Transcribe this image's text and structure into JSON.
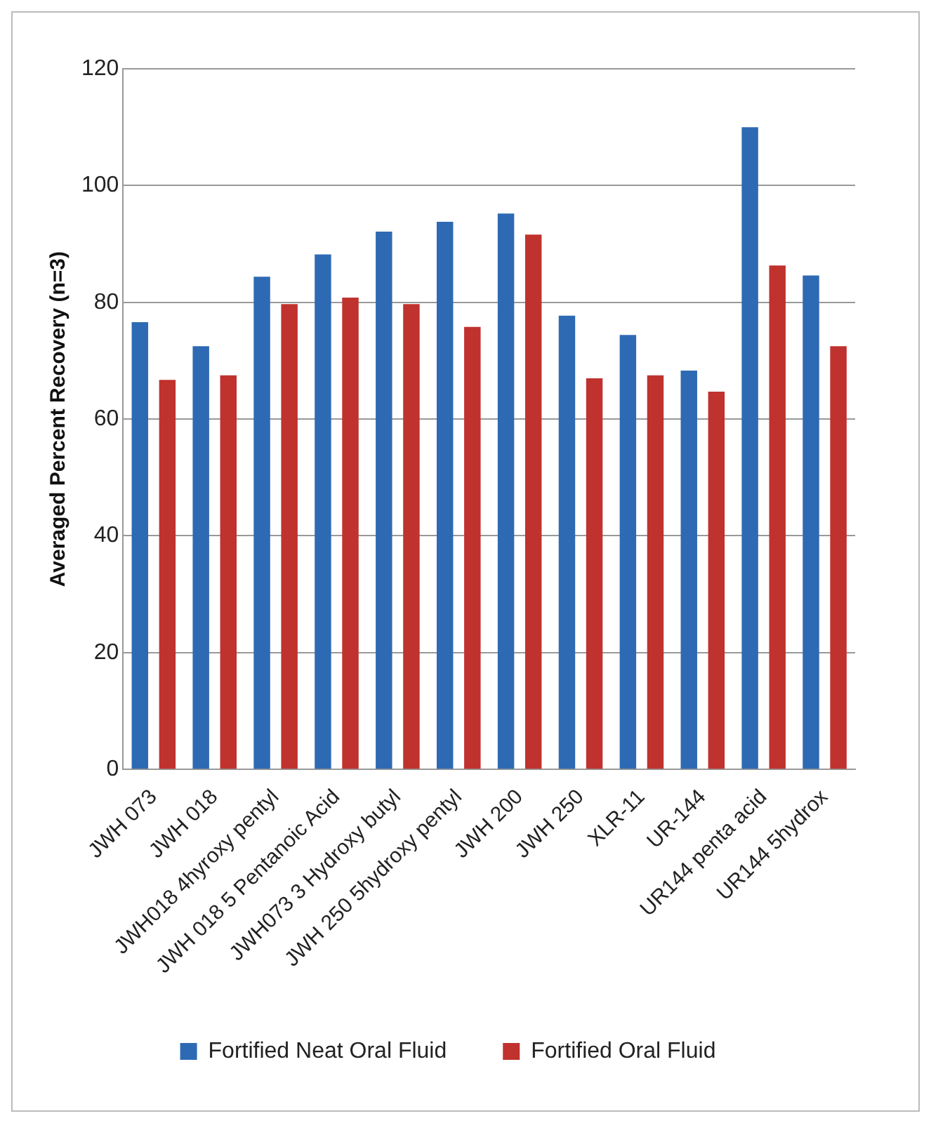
{
  "chart_data": {
    "type": "bar",
    "ylabel": "Averaged Percent Recovery (n=3)",
    "categories": [
      "JWH 073",
      "JWH 018",
      "JWH018 4hyroxy pentyl",
      "JWH 018 5 Pentanoic Acid",
      "JWH073 3 Hydroxy butyl",
      "JWH 250 5hydroxy pentyl",
      "JWH 200",
      "JWH 250",
      "XLR-11",
      "UR-144",
      "UR144 penta acid",
      "UR144 5hydrox"
    ],
    "series": [
      {
        "name": "Fortified Neat Oral Fluid",
        "color": "#2e6ab3",
        "values": [
          76.6,
          72.5,
          84.4,
          88.2,
          92.1,
          93.8,
          95.2,
          77.7,
          74.4,
          68.3,
          110,
          84.6
        ]
      },
      {
        "name": "Fortified Oral Fluid",
        "color": "#c0322e",
        "values": [
          66.7,
          67.5,
          79.7,
          80.8,
          79.7,
          75.8,
          91.6,
          67,
          67.5,
          64.7,
          86.3,
          72.5
        ]
      }
    ],
    "ylim": [
      0,
      120
    ],
    "yticks": [
      0,
      20,
      40,
      60,
      80,
      100,
      120
    ],
    "grid": "y",
    "legend": "bottom"
  }
}
